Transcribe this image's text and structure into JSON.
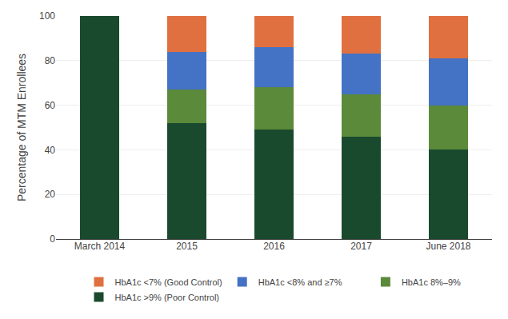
{
  "chart_data": {
    "type": "bar",
    "stacked": true,
    "categories": [
      "March 2014",
      "2015",
      "2016",
      "2017",
      "June 2018"
    ],
    "series": [
      {
        "name": "HbA1c >9% (Poor Control)",
        "values": [
          100,
          52,
          49,
          46,
          40
        ],
        "color": "#1a4a2e"
      },
      {
        "name": "HbA1c 8%–9%",
        "values": [
          0,
          15,
          19,
          19,
          20
        ],
        "color": "#5a8a3a"
      },
      {
        "name": "HbA1c <8% and ≥7%",
        "values": [
          0,
          17,
          18,
          18,
          21
        ],
        "color": "#4472c4"
      },
      {
        "name": "HbA1c <7% (Good Control)",
        "values": [
          0,
          16,
          14,
          17,
          19
        ],
        "color": "#e07040"
      }
    ],
    "ylabel": "Percentage of MTM Enrollees",
    "ylim": [
      0,
      100
    ],
    "yticks": [
      0,
      20,
      40,
      60,
      80,
      100
    ],
    "grid": true,
    "legend": "bottom"
  }
}
